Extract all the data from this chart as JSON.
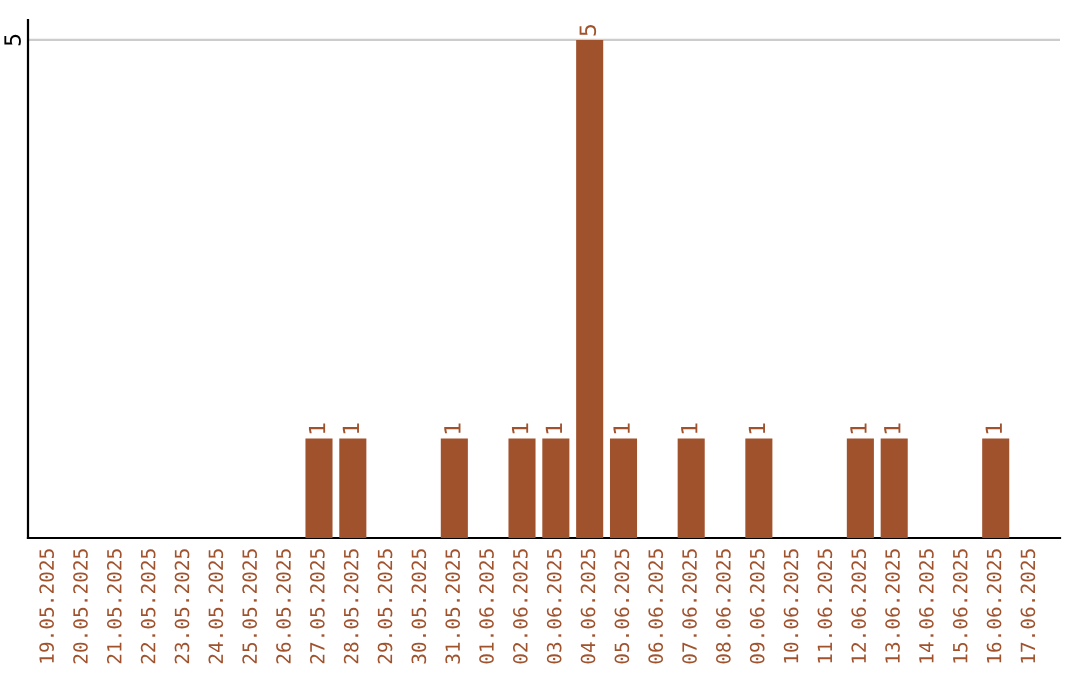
{
  "chart_data": {
    "type": "bar",
    "categories": [
      "19.05.2025",
      "20.05.2025",
      "21.05.2025",
      "22.05.2025",
      "23.05.2025",
      "24.05.2025",
      "25.05.2025",
      "26.05.2025",
      "27.05.2025",
      "28.05.2025",
      "29.05.2025",
      "30.05.2025",
      "31.05.2025",
      "01.06.2025",
      "02.06.2025",
      "03.06.2025",
      "04.06.2025",
      "05.06.2025",
      "06.06.2025",
      "07.06.2025",
      "08.06.2025",
      "09.06.2025",
      "10.06.2025",
      "11.06.2025",
      "12.06.2025",
      "13.06.2025",
      "14.06.2025",
      "15.06.2025",
      "16.06.2025",
      "17.06.2025"
    ],
    "values": [
      0,
      0,
      0,
      0,
      0,
      0,
      0,
      0,
      1,
      1,
      0,
      0,
      1,
      0,
      1,
      1,
      5,
      1,
      0,
      1,
      0,
      1,
      0,
      0,
      1,
      1,
      0,
      0,
      1,
      0
    ],
    "value_labels": [
      null,
      null,
      null,
      null,
      null,
      null,
      null,
      null,
      "1",
      "1",
      null,
      null,
      "1",
      null,
      "1",
      "1",
      "5",
      "1",
      null,
      "1",
      null,
      "1",
      null,
      null,
      "1",
      "1",
      null,
      null,
      "1",
      null
    ],
    "color": "#a0522d",
    "ylim": [
      0,
      5.2
    ],
    "yticks": [
      5
    ],
    "grid": "y",
    "legend": false
  }
}
